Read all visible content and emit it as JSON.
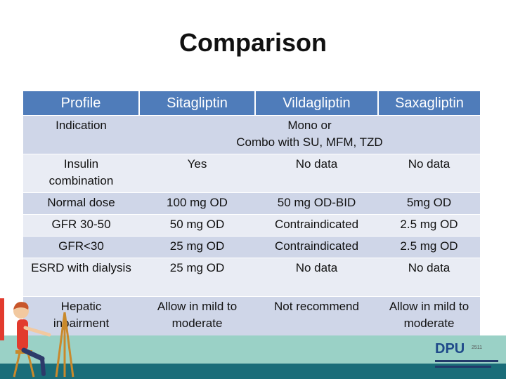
{
  "title": "Comparison",
  "table": {
    "headers": [
      "Profile",
      "Sitagliptin",
      "Vildagliptin",
      "Saxagliptin"
    ],
    "indication": {
      "label": "Indication",
      "value_line1": "Mono or",
      "value_line2": "Combo with SU, MFM, TZD"
    },
    "insulin": {
      "label_line1": "Insulin",
      "label_line2": "combination",
      "sita": "Yes",
      "vilda": "No data",
      "saxa": "No data"
    },
    "normal_dose": {
      "label": "Normal dose",
      "sita": "100 mg OD",
      "vilda": "50 mg OD-BID",
      "saxa": "5mg OD"
    },
    "gfr_30_50": {
      "label": "GFR 30-50",
      "sita": "50 mg OD",
      "vilda": "Contraindicated",
      "saxa": "2.5 mg OD"
    },
    "gfr_lt30": {
      "label": "GFR<30",
      "sita": "25 mg OD",
      "vilda": "Contraindicated",
      "saxa": "2.5 mg OD"
    },
    "esrd": {
      "label": "ESRD with dialysis",
      "sita": "25 mg OD",
      "vilda": "No data",
      "saxa": "No data"
    },
    "hepatic": {
      "label_line1": "Hepatic",
      "label_line2": "inpairment",
      "sita_line1": "Allow in mild to",
      "sita_line2": "moderate",
      "vilda": "Not recommend",
      "saxa_line1": "Allow in mild to",
      "saxa_line2": "moderate"
    }
  },
  "logo": {
    "brand": "DPU",
    "year": "2511"
  },
  "colors": {
    "header_bg": "#4f7cba",
    "row_dark": "#cfd6e8",
    "row_light": "#e9ecf4",
    "band_light": "#9ad1c6",
    "band_dark": "#1a6d79"
  }
}
